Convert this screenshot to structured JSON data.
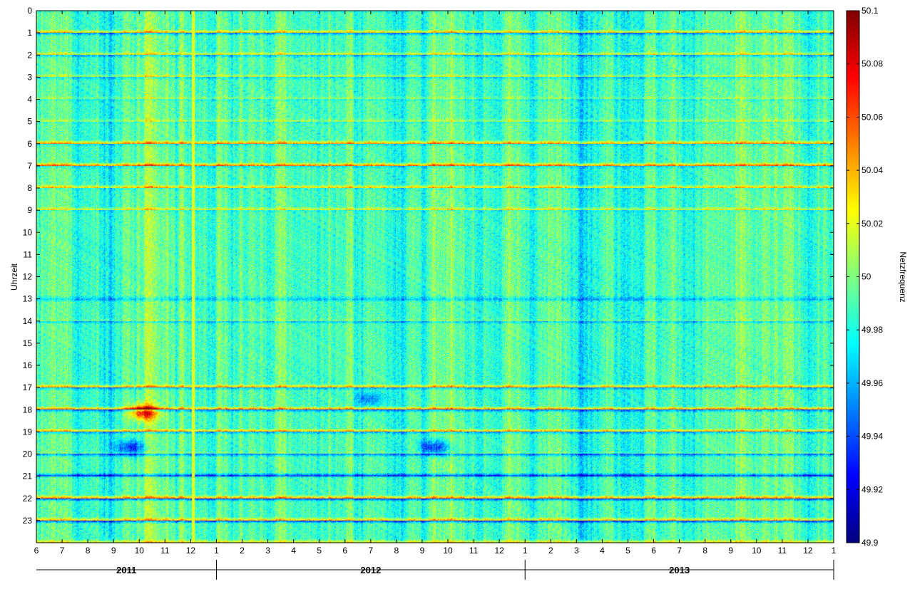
{
  "chart_data": {
    "type": "heatmap",
    "title": "",
    "ylabel": "Uhrzeit",
    "xlabel": "",
    "colorbar_label": "Netzfrequenz",
    "colormap": "jet",
    "colormap_stops": [
      "#00007f",
      "#0000ff",
      "#007fff",
      "#00ffff",
      "#7fff7f",
      "#ffff00",
      "#ff7f00",
      "#ff0000",
      "#7f0000"
    ],
    "value_range": [
      49.9,
      50.1
    ],
    "y_ticks": [
      "0",
      "1",
      "2",
      "3",
      "4",
      "5",
      "6",
      "7",
      "8",
      "9",
      "10",
      "11",
      "12",
      "13",
      "14",
      "15",
      "16",
      "17",
      "18",
      "19",
      "20",
      "21",
      "22",
      "23"
    ],
    "y_range": [
      0,
      24
    ],
    "x_ticks": [
      "6",
      "7",
      "8",
      "9",
      "10",
      "11",
      "12",
      "1",
      "2",
      "3",
      "4",
      "5",
      "6",
      "7",
      "8",
      "9",
      "10",
      "11",
      "12",
      "1",
      "2",
      "3",
      "4",
      "5",
      "6",
      "7",
      "8",
      "9",
      "10",
      "11",
      "12",
      "1"
    ],
    "x_range_months": [
      0,
      31
    ],
    "years": [
      {
        "label": "2011",
        "start_month": 0,
        "end_month": 7
      },
      {
        "label": "2012",
        "start_month": 7,
        "end_month": 19
      },
      {
        "label": "2013",
        "start_month": 19,
        "end_month": 31
      }
    ],
    "colorbar_ticks": [
      "50.1",
      "50.08",
      "50.06",
      "50.04",
      "50.02",
      "50",
      "49.98",
      "49.96",
      "49.94",
      "49.92",
      "49.9"
    ],
    "colorbar_tick_values": [
      50.1,
      50.08,
      50.06,
      50.04,
      50.02,
      50.0,
      49.98,
      49.96,
      49.94,
      49.92,
      49.9
    ],
    "typical_value": 49.99,
    "hour_boundary_effects": [
      {
        "hour": 0,
        "before": 50.03,
        "after": 49.98
      },
      {
        "hour": 1,
        "before": 50.04,
        "after": 49.95
      },
      {
        "hour": 2,
        "before": 50.03,
        "after": 49.96
      },
      {
        "hour": 3,
        "before": 50.02,
        "after": 49.97
      },
      {
        "hour": 4,
        "before": 50.01,
        "after": 49.98
      },
      {
        "hour": 5,
        "before": 50.01,
        "after": 49.98
      },
      {
        "hour": 6,
        "before": 50.05,
        "after": 49.97
      },
      {
        "hour": 7,
        "before": 50.06,
        "after": 49.97
      },
      {
        "hour": 8,
        "before": 50.04,
        "after": 49.98
      },
      {
        "hour": 9,
        "before": 50.03,
        "after": 49.98
      },
      {
        "hour": 13,
        "before": 49.97,
        "after": 49.96
      },
      {
        "hour": 14,
        "before": 50.0,
        "after": 49.96
      },
      {
        "hour": 17,
        "before": 50.05,
        "after": 49.96
      },
      {
        "hour": 18,
        "before": 50.06,
        "after": 49.95
      },
      {
        "hour": 19,
        "before": 50.05,
        "after": 49.96
      },
      {
        "hour": 20,
        "before": 50.0,
        "after": 49.95
      },
      {
        "hour": 21,
        "before": 49.93,
        "after": 49.98
      },
      {
        "hour": 22,
        "before": 50.05,
        "after": 49.93
      },
      {
        "hour": 23,
        "before": 50.04,
        "after": 49.93
      }
    ],
    "notable_features": [
      {
        "month": 6.1,
        "value": 50.02
      },
      {
        "month": 3.7,
        "hour": 19.7,
        "value": 49.93
      },
      {
        "month": 15.5,
        "hour": 19.7,
        "value": 49.93
      },
      {
        "month": 4.2,
        "hour": 18.1,
        "value": 50.07
      },
      {
        "month": 13.0,
        "hour": 17.5,
        "value": 49.95
      }
    ]
  }
}
